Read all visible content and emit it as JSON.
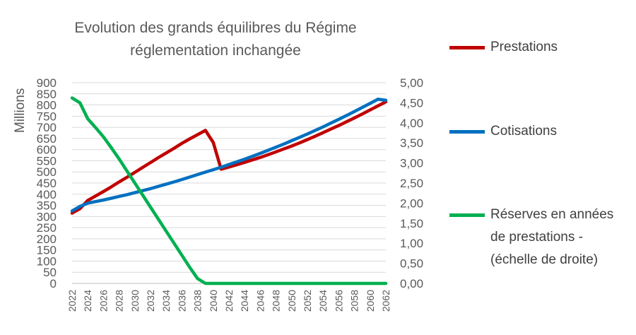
{
  "chart_data": {
    "type": "line",
    "title": [
      "Evolution des grands équilibres du Régime",
      "réglementation inchangée"
    ],
    "ylabel": "Millions",
    "ylim": [
      0,
      900
    ],
    "yticks": [
      "900",
      "850",
      "800",
      "750",
      "700",
      "650",
      "600",
      "550",
      "500",
      "450",
      "400",
      "350",
      "300",
      "250",
      "200",
      "150",
      "100",
      "50",
      "0"
    ],
    "y2lim": [
      0,
      5
    ],
    "y2ticks": [
      "5,00",
      "4,50",
      "4,00",
      "3,50",
      "3,00",
      "2,50",
      "2,00",
      "1,50",
      "1,00",
      "0,50",
      "0,00"
    ],
    "xticks": [
      "2022",
      "2024",
      "2026",
      "2028",
      "2030",
      "2032",
      "2034",
      "2036",
      "2038",
      "2040",
      "2042",
      "2044",
      "2046",
      "2048",
      "2050",
      "2052",
      "2054",
      "2056",
      "2058",
      "2060",
      "2062"
    ],
    "grid": true,
    "legend_position": "right",
    "x": [
      2022,
      2023,
      2024,
      2025,
      2026,
      2027,
      2028,
      2029,
      2030,
      2031,
      2032,
      2033,
      2034,
      2035,
      2036,
      2037,
      2038,
      2039,
      2040,
      2041,
      2042,
      2043,
      2044,
      2045,
      2046,
      2047,
      2048,
      2049,
      2050,
      2051,
      2052,
      2053,
      2054,
      2055,
      2056,
      2057,
      2058,
      2059,
      2060,
      2061,
      2062
    ],
    "series": [
      {
        "name": "Prestations",
        "color": "#C00000",
        "axis": "left",
        "values": [
          315,
          335,
          372,
          392,
          412,
          433,
          455,
          476,
          498,
          520,
          542,
          564,
          585,
          606,
          628,
          648,
          667,
          686,
          632,
          512,
          522,
          532,
          543,
          554,
          565,
          577,
          590,
          603,
          616,
          630,
          645,
          660,
          676,
          692,
          708,
          725,
          742,
          760,
          778,
          796,
          814
        ]
      },
      {
        "name": "Cotisations",
        "color": "#0070C0",
        "axis": "left",
        "values": [
          325,
          345,
          360,
          367,
          374,
          382,
          390,
          398,
          407,
          416,
          425,
          435,
          445,
          455,
          466,
          477,
          488,
          499,
          510,
          521,
          533,
          545,
          557,
          570,
          583,
          597,
          611,
          625,
          640,
          655,
          670,
          686,
          702,
          719,
          736,
          753,
          771,
          789,
          807,
          826,
          821
        ]
      },
      {
        "name": "Réserves en années de prestations - (échelle de droite)",
        "legend_lines": [
          "Réserves en années",
          "de prestations -",
          "(échelle de droite)"
        ],
        "color": "#00B050",
        "axis": "right",
        "values": [
          4.62,
          4.5,
          4.1,
          3.88,
          3.65,
          3.38,
          3.1,
          2.8,
          2.5,
          2.2,
          1.9,
          1.6,
          1.3,
          1.0,
          0.7,
          0.4,
          0.12,
          0.0,
          0.0,
          0.0,
          0.0,
          0.0,
          0.0,
          0.0,
          0.0,
          0.0,
          0.0,
          0.0,
          0.0,
          0.0,
          0.0,
          0.0,
          0.0,
          0.0,
          0.0,
          0.0,
          0.0,
          0.0,
          0.0,
          0.0,
          0.0
        ]
      }
    ]
  }
}
